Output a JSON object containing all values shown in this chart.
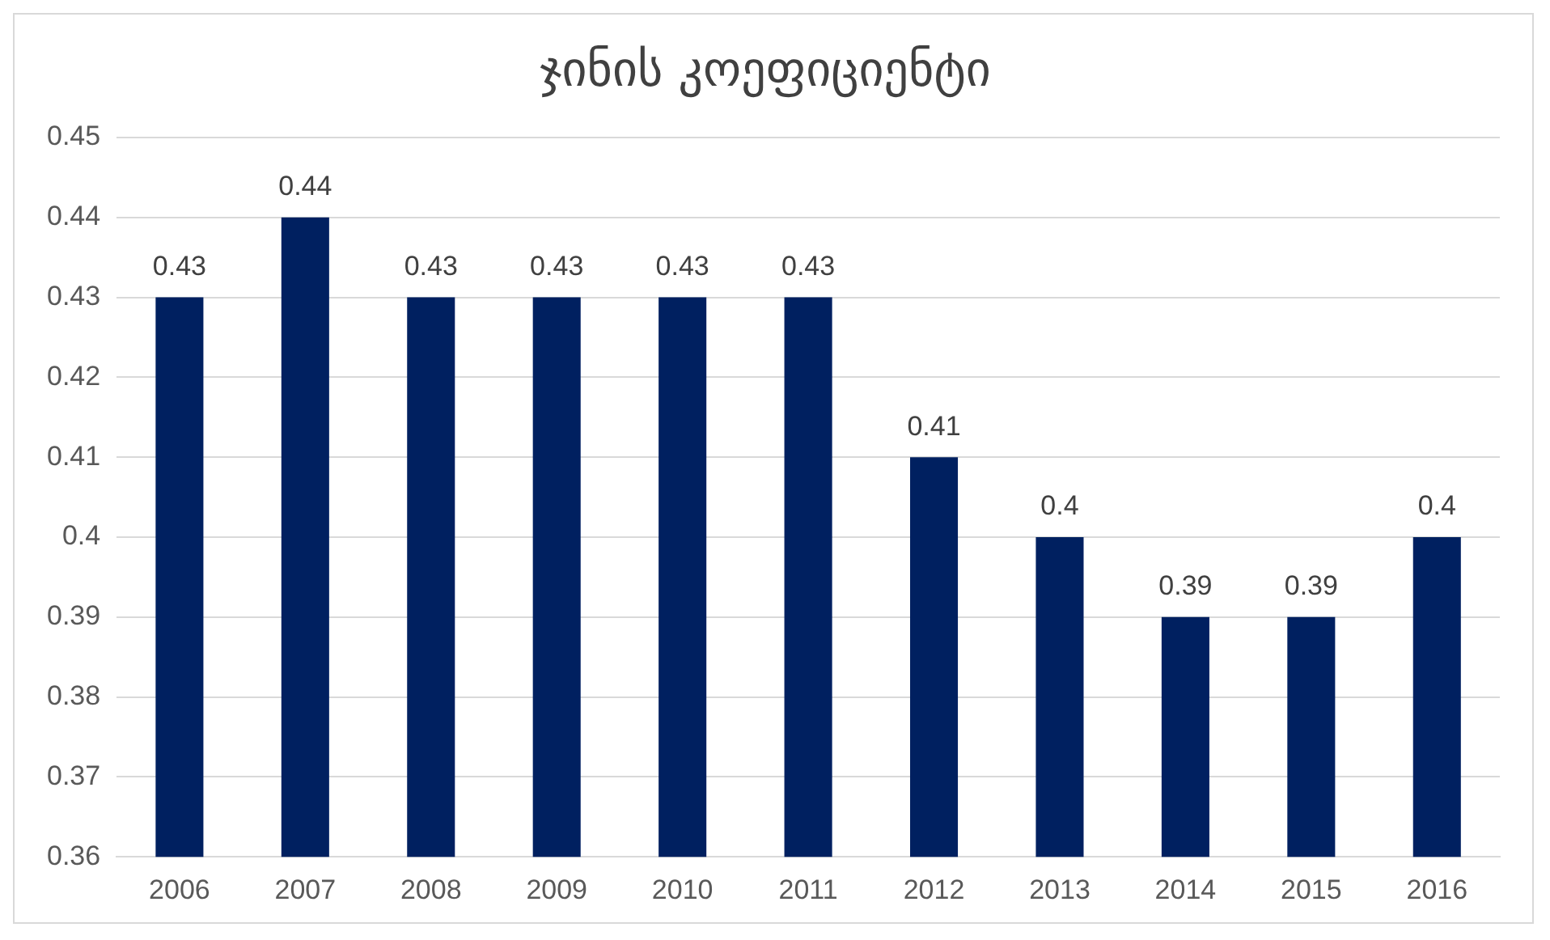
{
  "chart_data": {
    "type": "bar",
    "title": "ჯინის კოეფიციენტი",
    "categories": [
      "2006",
      "2007",
      "2008",
      "2009",
      "2010",
      "2011",
      "2012",
      "2013",
      "2014",
      "2015",
      "2016"
    ],
    "values": [
      0.43,
      0.44,
      0.43,
      0.43,
      0.43,
      0.43,
      0.41,
      0.4,
      0.39,
      0.39,
      0.4
    ],
    "color": "#002060",
    "ylim": [
      0.36,
      0.45
    ],
    "yticks": [
      0.36,
      0.37,
      0.38,
      0.39,
      0.4,
      0.41,
      0.42,
      0.43,
      0.44,
      0.45
    ],
    "grid": "y",
    "legend": false,
    "data_labels": true
  }
}
